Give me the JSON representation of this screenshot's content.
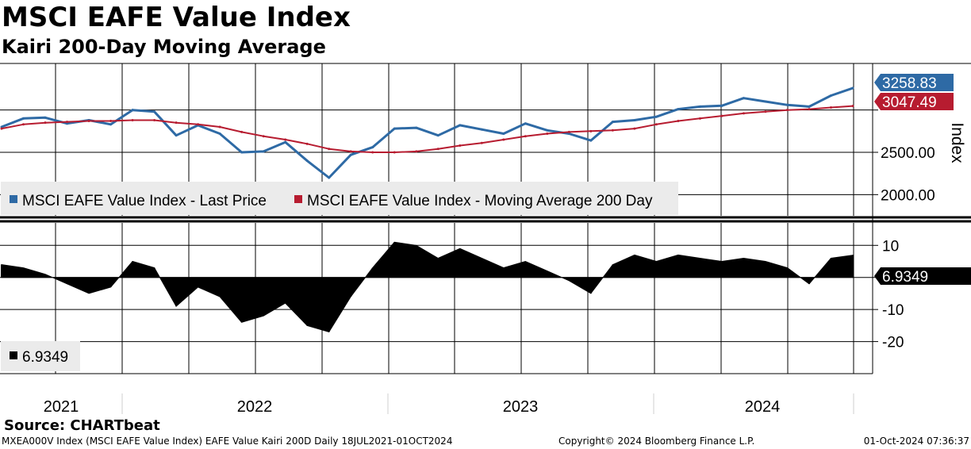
{
  "title": "MSCI EAFE Value Index",
  "subtitle": "Kairi 200-Day Moving Average",
  "source": "Source: CHARTbeat",
  "footer": {
    "left": "MXEA000V Index (MSCI EAFE Value Index) EAFE Value Kairi 200D  Daily 18JUL2021-01OCT2024",
    "center": "Copyright© 2024 Bloomberg Finance L.P.",
    "right": "01-Oct-2024 07:36:37"
  },
  "colors": {
    "price": "#2e6aa5",
    "ma": "#b71c30",
    "kairi": "#000000",
    "grid": "#000000",
    "legend_bg": "#ebebeb"
  },
  "chart_data": [
    {
      "type": "line",
      "ylabel": "Index",
      "ylim": [
        1750,
        3550
      ],
      "yticks": [
        2000,
        2500
      ],
      "ytick_labels": [
        "2000.00",
        "2500.00"
      ],
      "xlabels": [
        "2021",
        "2022",
        "2023",
        "2024"
      ],
      "legend": [
        "MSCI EAFE Value Index - Last Price",
        "MSCI EAFE Value Index - Moving Average 200 Day"
      ],
      "legend_placement": "bottom-left",
      "grid": true,
      "last_labels": [
        "3258.83",
        "3047.49"
      ],
      "x": [
        "2021-07",
        "2021-08",
        "2021-09",
        "2021-10",
        "2021-11",
        "2021-12",
        "2022-01",
        "2022-02",
        "2022-03",
        "2022-04",
        "2022-05",
        "2022-06",
        "2022-07",
        "2022-08",
        "2022-09",
        "2022-10",
        "2022-11",
        "2022-12",
        "2023-01",
        "2023-02",
        "2023-03",
        "2023-04",
        "2023-05",
        "2023-06",
        "2023-07",
        "2023-08",
        "2023-09",
        "2023-10",
        "2023-11",
        "2023-12",
        "2024-01",
        "2024-02",
        "2024-03",
        "2024-04",
        "2024-05",
        "2024-06",
        "2024-07",
        "2024-08",
        "2024-09",
        "2024-10"
      ],
      "series": [
        {
          "name": "MSCI EAFE Value Index - Last Price",
          "values": [
            2800,
            2900,
            2910,
            2840,
            2880,
            2830,
            3000,
            2980,
            2700,
            2820,
            2720,
            2500,
            2510,
            2620,
            2400,
            2200,
            2470,
            2560,
            2780,
            2790,
            2700,
            2820,
            2770,
            2720,
            2840,
            2760,
            2720,
            2640,
            2860,
            2880,
            2920,
            3010,
            3040,
            3050,
            3140,
            3100,
            3060,
            3040,
            3170,
            3258.83
          ]
        },
        {
          "name": "MSCI EAFE Value Index - Moving Average 200 Day",
          "values": [
            2780,
            2830,
            2850,
            2860,
            2870,
            2870,
            2880,
            2880,
            2850,
            2830,
            2800,
            2740,
            2690,
            2650,
            2600,
            2540,
            2510,
            2500,
            2500,
            2510,
            2540,
            2580,
            2610,
            2650,
            2690,
            2720,
            2740,
            2750,
            2760,
            2780,
            2830,
            2870,
            2900,
            2930,
            2960,
            2980,
            3000,
            3010,
            3030,
            3047.49
          ]
        }
      ]
    },
    {
      "type": "area",
      "ylim": [
        -30,
        17
      ],
      "yticks": [
        10,
        0,
        -10,
        -20
      ],
      "ytick_labels": [
        "10",
        "0",
        "-10",
        "-20"
      ],
      "legend": [
        "6.9349"
      ],
      "legend_placement": "bottom-left",
      "grid": true,
      "last_label": "6.9349",
      "x": [
        "2021-07",
        "2021-08",
        "2021-09",
        "2021-10",
        "2021-11",
        "2021-12",
        "2022-01",
        "2022-02",
        "2022-03",
        "2022-04",
        "2022-05",
        "2022-06",
        "2022-07",
        "2022-08",
        "2022-09",
        "2022-10",
        "2022-11",
        "2022-12",
        "2023-01",
        "2023-02",
        "2023-03",
        "2023-04",
        "2023-05",
        "2023-06",
        "2023-07",
        "2023-08",
        "2023-09",
        "2023-10",
        "2023-11",
        "2023-12",
        "2024-01",
        "2024-02",
        "2024-03",
        "2024-04",
        "2024-05",
        "2024-06",
        "2024-07",
        "2024-08",
        "2024-09",
        "2024-10"
      ],
      "series": [
        {
          "name": "6.9349",
          "values": [
            4,
            3,
            1,
            -2,
            -5,
            -3,
            5,
            3,
            -9,
            -3,
            -6,
            -14,
            -12,
            -8,
            -15,
            -17,
            -6,
            3,
            11,
            10,
            6,
            9,
            6,
            3,
            5,
            2,
            -1,
            -5,
            4,
            7,
            5,
            7,
            6,
            5,
            6,
            5,
            3,
            -2,
            6,
            6.9349
          ]
        }
      ]
    }
  ]
}
